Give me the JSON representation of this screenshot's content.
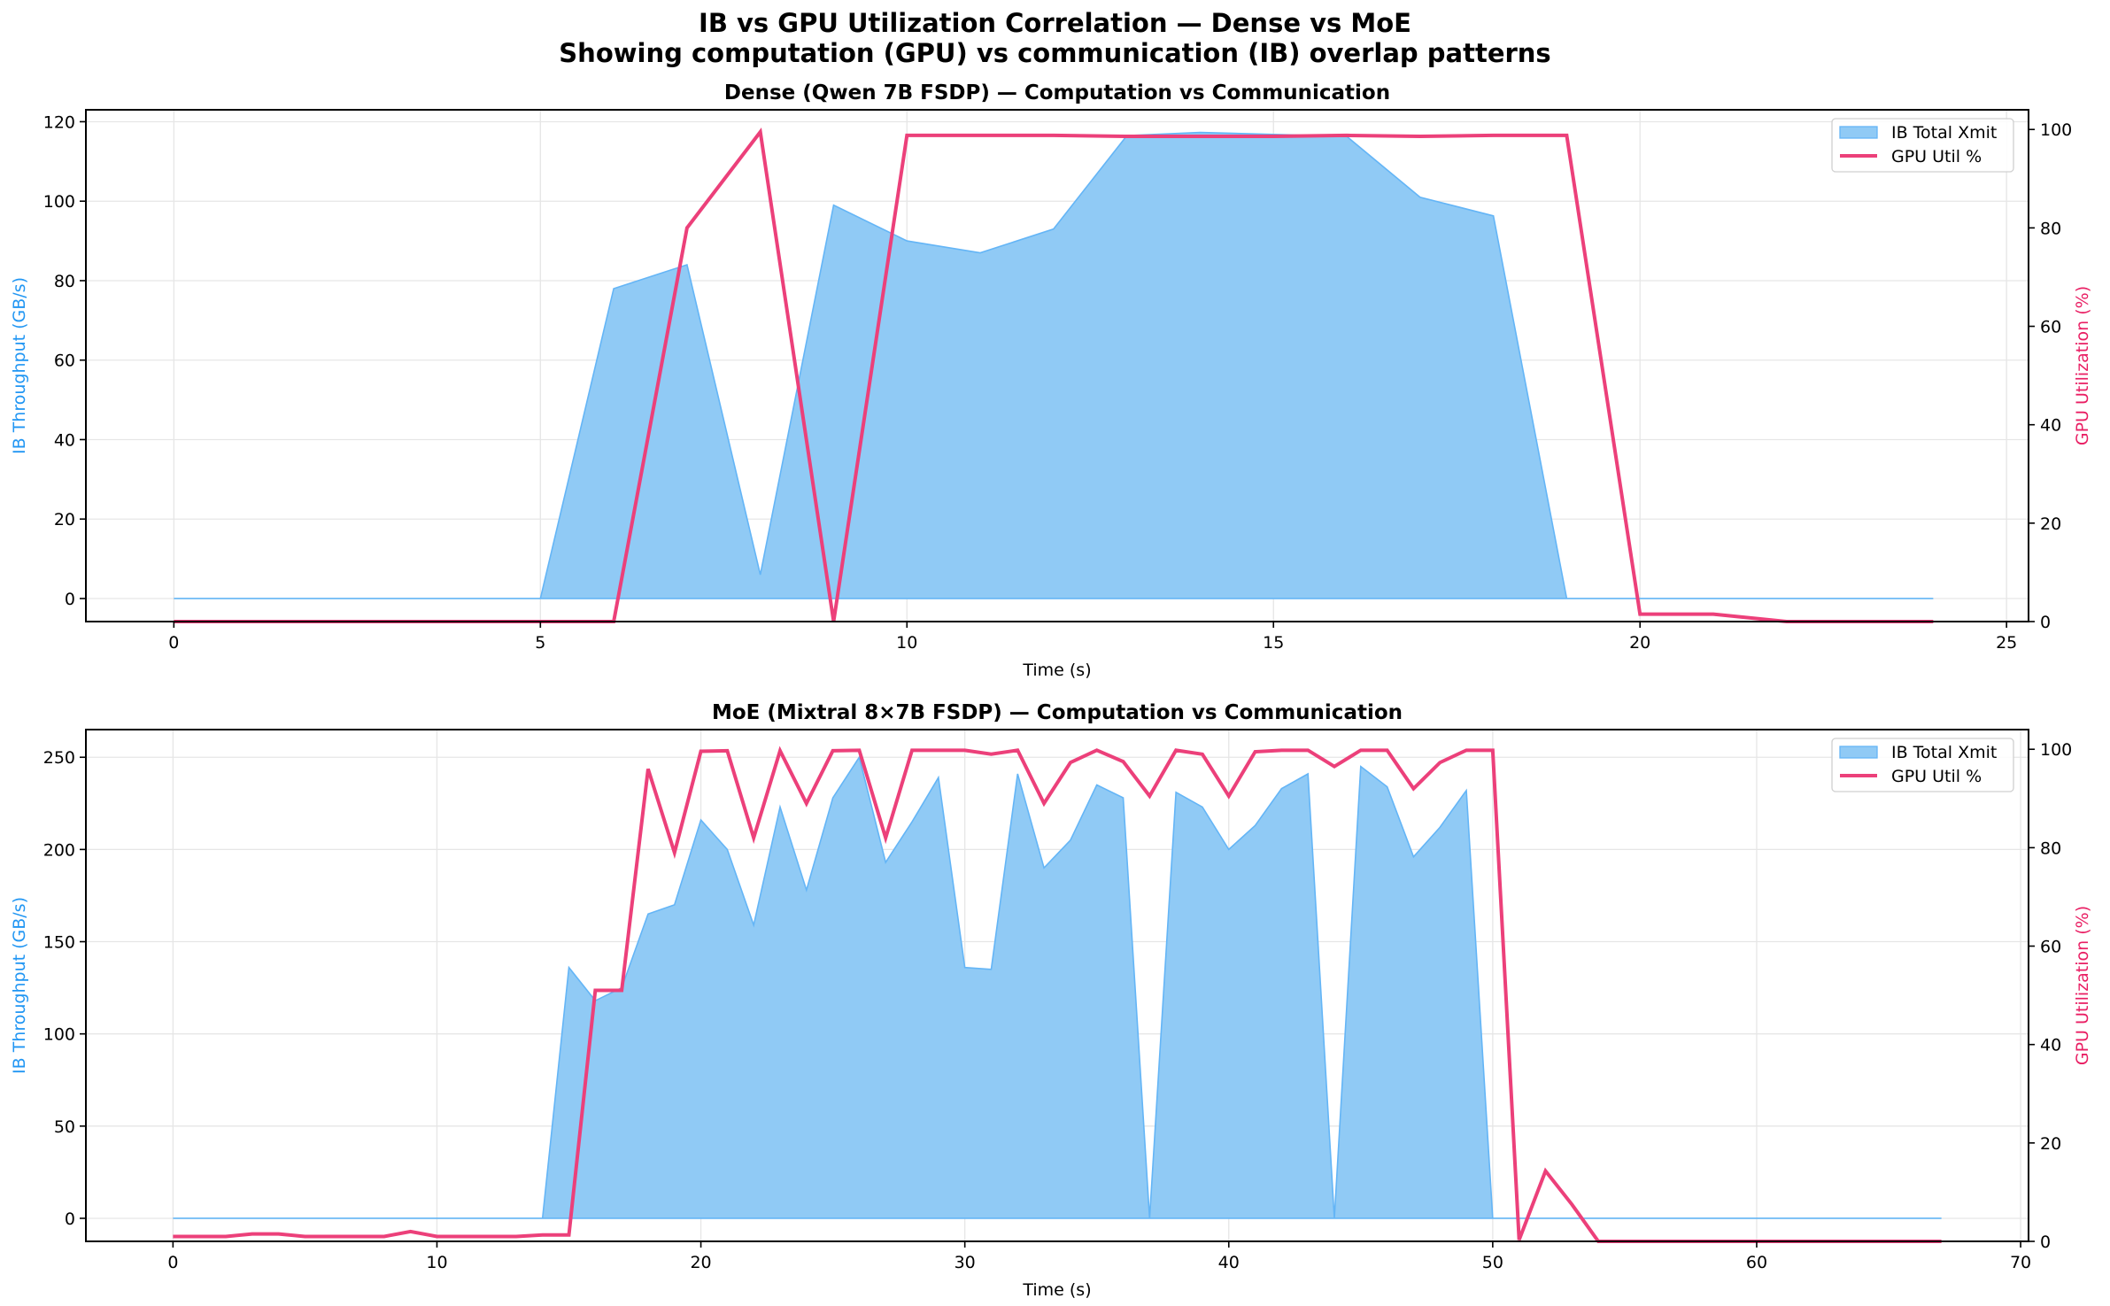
{
  "figure": {
    "title_line1": "IB vs GPU Utilization Correlation — Dense vs MoE",
    "title_line2": "Showing computation (GPU) vs communication (IB) overlap patterns"
  },
  "colors": {
    "ib_fill": "#90CAF5",
    "ib_line": "#64B5F6",
    "gpu_line": "#EC407A",
    "ib_label": "#2196F3",
    "gpu_label": "#E91E63",
    "grid": "#E6E6E6"
  },
  "legend": {
    "ib": "IB Total Xmit",
    "gpu": "GPU Util %"
  },
  "chart_data": [
    {
      "type": "area+line",
      "title": "Dense (Qwen 7B FSDP) — Computation vs Communication",
      "xlabel": "Time (s)",
      "ylabel": "IB Throughput (GB/s)",
      "y2label": "GPU Utilization (%)",
      "xlim": [
        -1.2,
        25.3
      ],
      "ylim": [
        -5.8,
        123
      ],
      "y2lim": [
        0,
        104
      ],
      "xticks": [
        0,
        5,
        10,
        15,
        20,
        25
      ],
      "yticks": [
        0,
        20,
        40,
        60,
        80,
        100,
        120
      ],
      "y2ticks": [
        0,
        20,
        40,
        60,
        80,
        100
      ],
      "grid": true,
      "legend_position": "upper right",
      "x": [
        0,
        1,
        2,
        3,
        4,
        5,
        6,
        7,
        8,
        9,
        10,
        11,
        12,
        13,
        14,
        15,
        16,
        17,
        18,
        19,
        20,
        21,
        22,
        23,
        24
      ],
      "series": [
        {
          "name": "IB Total Xmit",
          "axis": "left",
          "kind": "area",
          "values": [
            0,
            0,
            0,
            0,
            0,
            0,
            78,
            84,
            6,
            99,
            90,
            87,
            93,
            116.5,
            117.3,
            116.8,
            116.3,
            101,
            96.3,
            0,
            0,
            0,
            0,
            0,
            0
          ]
        },
        {
          "name": "GPU Util %",
          "axis": "right",
          "kind": "line",
          "values": [
            0,
            0,
            0,
            0,
            0,
            0,
            0,
            80,
            99.5,
            0,
            98.8,
            98.8,
            98.8,
            98.6,
            98.6,
            98.6,
            98.8,
            98.6,
            98.8,
            98.8,
            1.5,
            1.5,
            0,
            0,
            0
          ]
        }
      ]
    },
    {
      "type": "area+line",
      "title": "MoE (Mixtral 8×7B FSDP) — Computation vs Communication",
      "xlabel": "Time (s)",
      "ylabel": "IB Throughput (GB/s)",
      "y2label": "GPU Utilization (%)",
      "xlim": [
        -3.3,
        70.3
      ],
      "ylim": [
        -12.5,
        265
      ],
      "y2lim": [
        0,
        104
      ],
      "xticks": [
        0,
        10,
        20,
        30,
        40,
        50,
        60,
        70
      ],
      "yticks": [
        0,
        50,
        100,
        150,
        200,
        250
      ],
      "y2ticks": [
        0,
        20,
        40,
        60,
        80,
        100
      ],
      "grid": true,
      "legend_position": "upper right",
      "x": [
        0,
        1,
        2,
        3,
        4,
        5,
        6,
        7,
        8,
        9,
        10,
        11,
        12,
        13,
        14,
        15,
        16,
        17,
        18,
        19,
        20,
        21,
        22,
        23,
        24,
        25,
        26,
        27,
        28,
        29,
        30,
        31,
        32,
        33,
        34,
        35,
        36,
        37,
        38,
        39,
        40,
        41,
        42,
        43,
        44,
        45,
        46,
        47,
        48,
        49,
        50,
        51,
        52,
        53,
        54,
        55,
        56,
        57,
        58,
        59,
        60,
        61,
        62,
        63,
        64,
        65,
        66,
        67
      ],
      "series": [
        {
          "name": "IB Total Xmit",
          "axis": "left",
          "kind": "area",
          "values": [
            0,
            0,
            0,
            0,
            0,
            0,
            0,
            0,
            0,
            0,
            0,
            0,
            0,
            0,
            0,
            136,
            118,
            125,
            165,
            170,
            216,
            200,
            159,
            223,
            178,
            228,
            250,
            193,
            215,
            239,
            136,
            135,
            241,
            190,
            205,
            235,
            228,
            0,
            231,
            223,
            200,
            213,
            233,
            241,
            0,
            245,
            234,
            196,
            212,
            232,
            0,
            0,
            0,
            0,
            0,
            0,
            0,
            0,
            0,
            0,
            0,
            0,
            0,
            0,
            0,
            0,
            0,
            0
          ]
        },
        {
          "name": "GPU Util %",
          "axis": "right",
          "kind": "line",
          "values": [
            1,
            1,
            1,
            1.5,
            1.5,
            1,
            1,
            1,
            1,
            2,
            1,
            1,
            1,
            1,
            1.3,
            1.3,
            51,
            51,
            96,
            79,
            99.6,
            99.7,
            82,
            99.7,
            89,
            99.7,
            99.8,
            82,
            99.8,
            99.8,
            99.8,
            99,
            99.8,
            89,
            97.3,
            99.8,
            97.5,
            90.5,
            99.8,
            99,
            90.5,
            99.5,
            99.8,
            99.8,
            96.5,
            99.8,
            99.8,
            92,
            97.3,
            99.8,
            99.8,
            0.3,
            14.3,
            7.5,
            0,
            0,
            0,
            0,
            0,
            0,
            0,
            0,
            0,
            0,
            0,
            0,
            0,
            0
          ]
        }
      ]
    }
  ]
}
